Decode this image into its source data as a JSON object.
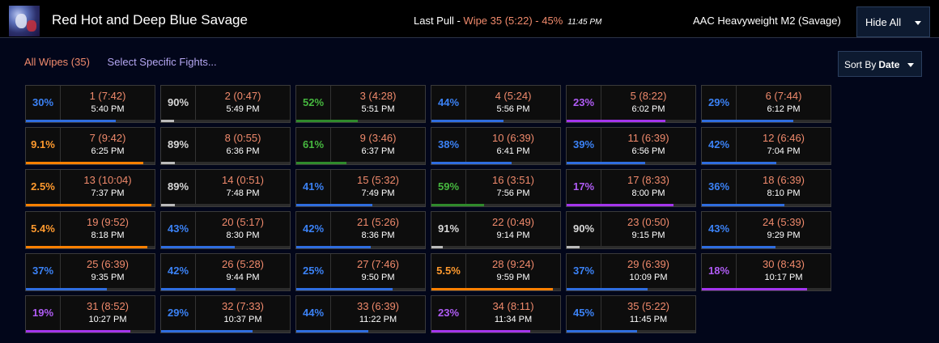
{
  "header": {
    "report_title": "Red Hot and Deep Blue Savage",
    "last_pull_label": "Last Pull - ",
    "last_pull_result": "Wipe 35 (5:22) - 45%",
    "last_pull_time": "11:45 PM",
    "encounter": "AAC Heavyweight M2 (Savage)",
    "hide_all_label": "Hide All"
  },
  "filters": {
    "all_wipes": "All Wipes (35)",
    "select_fights": "Select Specific Fights..."
  },
  "sort": {
    "label": "Sort By",
    "value": "Date"
  },
  "colors": {
    "blue": "#2f6de0",
    "white": "#bbbbbb",
    "green": "#2f8a2c",
    "purple": "#a335ee",
    "orange": "#ff8000",
    "wipe_text": "#f08a6c"
  },
  "fights": [
    {
      "pct": "30%",
      "fight": "1 (7:42)",
      "time": "5:40 PM",
      "quality": "blue",
      "progress": 0.7
    },
    {
      "pct": "90%",
      "fight": "2 (0:47)",
      "time": "5:49 PM",
      "quality": "white",
      "progress": 0.1
    },
    {
      "pct": "52%",
      "fight": "3 (4:28)",
      "time": "5:51 PM",
      "quality": "green",
      "progress": 0.48
    },
    {
      "pct": "44%",
      "fight": "4 (5:24)",
      "time": "5:56 PM",
      "quality": "blue",
      "progress": 0.56
    },
    {
      "pct": "23%",
      "fight": "5 (8:22)",
      "time": "6:02 PM",
      "quality": "purple",
      "progress": 0.77
    },
    {
      "pct": "29%",
      "fight": "6 (7:44)",
      "time": "6:12 PM",
      "quality": "blue",
      "progress": 0.71
    },
    {
      "pct": "9.1%",
      "fight": "7 (9:42)",
      "time": "6:25 PM",
      "quality": "orange",
      "progress": 0.909
    },
    {
      "pct": "89%",
      "fight": "8 (0:55)",
      "time": "6:36 PM",
      "quality": "white",
      "progress": 0.11
    },
    {
      "pct": "61%",
      "fight": "9 (3:46)",
      "time": "6:37 PM",
      "quality": "green",
      "progress": 0.39
    },
    {
      "pct": "38%",
      "fight": "10 (6:39)",
      "time": "6:41 PM",
      "quality": "blue",
      "progress": 0.62
    },
    {
      "pct": "39%",
      "fight": "11 (6:39)",
      "time": "6:56 PM",
      "quality": "blue",
      "progress": 0.61
    },
    {
      "pct": "42%",
      "fight": "12 (6:46)",
      "time": "7:04 PM",
      "quality": "blue",
      "progress": 0.58
    },
    {
      "pct": "2.5%",
      "fight": "13 (10:04)",
      "time": "7:37 PM",
      "quality": "orange",
      "progress": 0.975
    },
    {
      "pct": "89%",
      "fight": "14 (0:51)",
      "time": "7:48 PM",
      "quality": "white",
      "progress": 0.11
    },
    {
      "pct": "41%",
      "fight": "15 (5:32)",
      "time": "7:49 PM",
      "quality": "blue",
      "progress": 0.59
    },
    {
      "pct": "59%",
      "fight": "16 (3:51)",
      "time": "7:56 PM",
      "quality": "green",
      "progress": 0.41
    },
    {
      "pct": "17%",
      "fight": "17 (8:33)",
      "time": "8:00 PM",
      "quality": "purple",
      "progress": 0.83
    },
    {
      "pct": "36%",
      "fight": "18 (6:39)",
      "time": "8:10 PM",
      "quality": "blue",
      "progress": 0.64
    },
    {
      "pct": "5.4%",
      "fight": "19 (9:52)",
      "time": "8:18 PM",
      "quality": "orange",
      "progress": 0.946
    },
    {
      "pct": "43%",
      "fight": "20 (5:17)",
      "time": "8:30 PM",
      "quality": "blue",
      "progress": 0.57
    },
    {
      "pct": "42%",
      "fight": "21 (5:26)",
      "time": "8:36 PM",
      "quality": "blue",
      "progress": 0.58
    },
    {
      "pct": "91%",
      "fight": "22 (0:49)",
      "time": "9:14 PM",
      "quality": "white",
      "progress": 0.09
    },
    {
      "pct": "90%",
      "fight": "23 (0:50)",
      "time": "9:15 PM",
      "quality": "white",
      "progress": 0.1
    },
    {
      "pct": "43%",
      "fight": "24 (5:39)",
      "time": "9:29 PM",
      "quality": "blue",
      "progress": 0.57
    },
    {
      "pct": "37%",
      "fight": "25 (6:39)",
      "time": "9:35 PM",
      "quality": "blue",
      "progress": 0.63
    },
    {
      "pct": "42%",
      "fight": "26 (5:28)",
      "time": "9:44 PM",
      "quality": "blue",
      "progress": 0.58
    },
    {
      "pct": "25%",
      "fight": "27 (7:46)",
      "time": "9:50 PM",
      "quality": "blue",
      "progress": 0.75
    },
    {
      "pct": "5.5%",
      "fight": "28 (9:24)",
      "time": "9:59 PM",
      "quality": "orange",
      "progress": 0.945
    },
    {
      "pct": "37%",
      "fight": "29 (6:39)",
      "time": "10:09 PM",
      "quality": "blue",
      "progress": 0.63
    },
    {
      "pct": "18%",
      "fight": "30 (8:43)",
      "time": "10:17 PM",
      "quality": "purple",
      "progress": 0.82
    },
    {
      "pct": "19%",
      "fight": "31 (8:52)",
      "time": "10:27 PM",
      "quality": "purple",
      "progress": 0.81
    },
    {
      "pct": "29%",
      "fight": "32 (7:33)",
      "time": "10:37 PM",
      "quality": "blue",
      "progress": 0.71
    },
    {
      "pct": "44%",
      "fight": "33 (6:39)",
      "time": "11:22 PM",
      "quality": "blue",
      "progress": 0.56
    },
    {
      "pct": "23%",
      "fight": "34 (8:11)",
      "time": "11:34 PM",
      "quality": "purple",
      "progress": 0.77
    },
    {
      "pct": "45%",
      "fight": "35 (5:22)",
      "time": "11:45 PM",
      "quality": "blue",
      "progress": 0.55
    }
  ]
}
